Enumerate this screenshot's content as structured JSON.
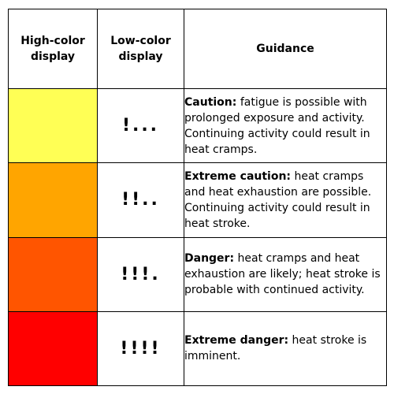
{
  "header": {
    "high_color": "High-color display",
    "low_color": "Low-color display",
    "guidance": "Guidance"
  },
  "levels": [
    {
      "color": "#ffff55",
      "indicator": "!...",
      "label": "Caution:",
      "text": " fatigue is possible with prolonged exposure and activity. Continuing activity could result in heat cramps."
    },
    {
      "color": "#ffa500",
      "indicator": "!!..",
      "label": "Extreme caution:",
      "text": " heat cramps and heat exhaustion are possible. Continuing activity could result in heat stroke."
    },
    {
      "color": "#ff5500",
      "indicator": "!!!.",
      "label": "Danger:",
      "text": " heat cramps and heat exhaustion are likely; heat stroke is probable with continued activity."
    },
    {
      "color": "#ff0000",
      "indicator": "!!!!",
      "label": "Extreme danger:",
      "text": " heat stroke is imminent."
    }
  ]
}
